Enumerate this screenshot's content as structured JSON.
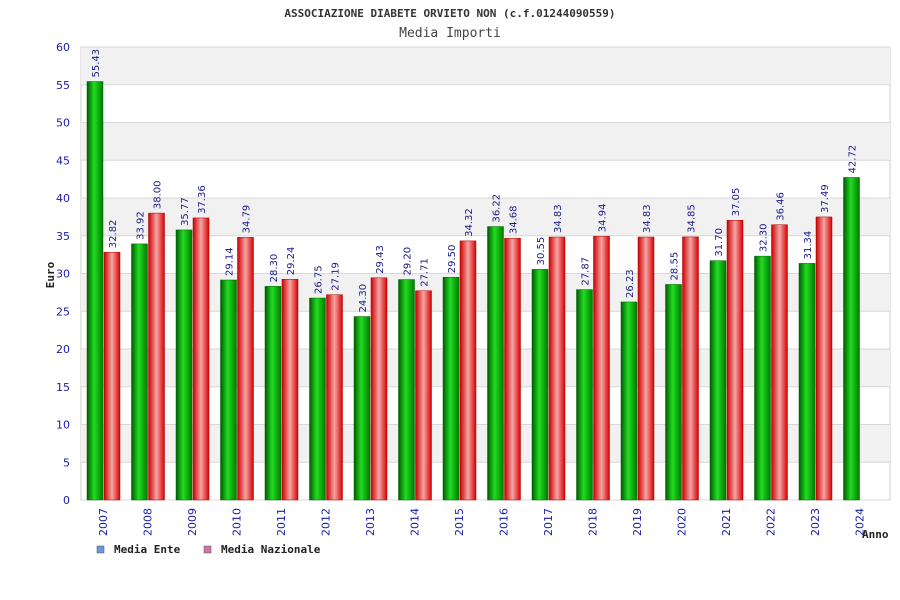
{
  "chart_data": {
    "type": "bar",
    "title": "ASSOCIAZIONE DIABETE ORVIETO NON (c.f.01244090559)",
    "subtitle": "Media Importi",
    "ylabel": "Euro",
    "xlabel": "Anno",
    "ylim": [
      0,
      60
    ],
    "yticks": [
      "0",
      "5",
      "10",
      "15",
      "20",
      "25",
      "30",
      "35",
      "40",
      "45",
      "50",
      "55",
      "60"
    ],
    "grid": true,
    "legend_position": "bottom-left",
    "categories": [
      "2007",
      "2008",
      "2009",
      "2010",
      "2011",
      "2012",
      "2013",
      "2014",
      "2015",
      "2016",
      "2017",
      "2018",
      "2019",
      "2020",
      "2021",
      "2022",
      "2023",
      "2024"
    ],
    "series": [
      {
        "name": "Media Ente",
        "color": "#00a000",
        "legend_color": "#6699dd",
        "values": [
          55.43,
          33.92,
          35.77,
          29.14,
          28.3,
          26.75,
          24.3,
          29.2,
          29.5,
          36.22,
          30.55,
          27.87,
          26.23,
          28.55,
          31.7,
          32.3,
          31.34,
          42.72
        ],
        "labels": [
          "55.43",
          "33.92",
          "35.77",
          "29.14",
          "28.30",
          "26.75",
          "24.30",
          "29.20",
          "29.50",
          "36.22",
          "30.55",
          "27.87",
          "26.23",
          "28.55",
          "31.70",
          "32.30",
          "31.34",
          "42.72"
        ]
      },
      {
        "name": "Media Nazionale",
        "color": "#e01010",
        "legend_color": "#cc77aa",
        "values": [
          32.82,
          38.0,
          37.36,
          34.79,
          29.24,
          27.19,
          29.43,
          27.71,
          34.32,
          34.68,
          34.83,
          34.94,
          34.83,
          34.85,
          37.05,
          36.46,
          37.49,
          null
        ],
        "labels": [
          "32.82",
          "38.00",
          "37.36",
          "34.79",
          "29.24",
          "27.19",
          "29.43",
          "27.71",
          "34.32",
          "34.68",
          "34.83",
          "34.94",
          "34.83",
          "34.85",
          "37.05",
          "36.46",
          "37.49",
          ""
        ]
      }
    ]
  }
}
